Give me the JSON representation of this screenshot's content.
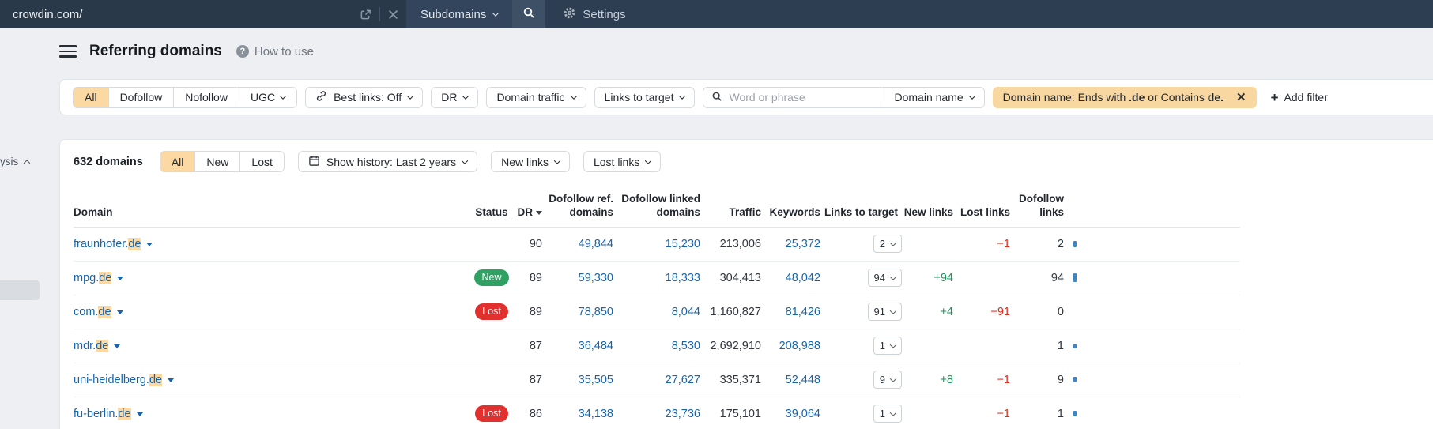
{
  "topbar": {
    "url_value": "crowdin.com/",
    "mode_label": "Subdomains",
    "settings_label": "Settings"
  },
  "sidebar": {
    "collapsed_label": "ysis"
  },
  "header": {
    "title": "Referring domains",
    "help_label": "How to use"
  },
  "filters": {
    "link_type_tabs": [
      {
        "label": "All"
      },
      {
        "label": "Dofollow"
      },
      {
        "label": "Nofollow"
      },
      {
        "label": "UGC"
      }
    ],
    "best_links_label": "Best links: Off",
    "dr_label": "DR",
    "domain_traffic_label": "Domain traffic",
    "links_to_target_label": "Links to target",
    "search_placeholder": "Word or phrase",
    "domain_name_label": "Domain name",
    "chip": {
      "part1": "Domain name: Ends with ",
      "bold1": ".de",
      "part2": " or Contains ",
      "bold2": "de."
    },
    "add_filter_label": "Add filter"
  },
  "toolbar": {
    "count_label": "632 domains",
    "tabs": [
      {
        "label": "All"
      },
      {
        "label": "New"
      },
      {
        "label": "Lost"
      }
    ],
    "history_label": "Show history: Last 2 years",
    "new_links_label": "New links",
    "lost_links_label": "Lost links"
  },
  "table": {
    "columns": [
      "Domain",
      "Status",
      "DR",
      "Dofollow ref. domains",
      "Dofollow linked domains",
      "Traffic",
      "Keywords",
      "Links to target",
      "New links",
      "Lost links",
      "Dofollow links"
    ],
    "rows": [
      {
        "domain_prefix": "fraunhofer.",
        "domain_highlight": "de",
        "status": "",
        "dr": "90",
        "dofollow_ref": "49,844",
        "dofollow_linked": "15,230",
        "traffic": "213,006",
        "keywords": "25,372",
        "links_to_target": "2",
        "new_links": "",
        "lost_links": "−1",
        "dofollow_links": "2",
        "bar": 8
      },
      {
        "domain_prefix": "mpg.",
        "domain_highlight": "de",
        "status": "New",
        "dr": "89",
        "dofollow_ref": "59,330",
        "dofollow_linked": "18,333",
        "traffic": "304,413",
        "keywords": "48,042",
        "links_to_target": "94",
        "new_links": "+94",
        "lost_links": "",
        "dofollow_links": "94",
        "bar": 11
      },
      {
        "domain_prefix": "com.",
        "domain_highlight": "de",
        "status": "Lost",
        "dr": "89",
        "dofollow_ref": "78,850",
        "dofollow_linked": "8,044",
        "traffic": "1,160,827",
        "keywords": "81,426",
        "links_to_target": "91",
        "new_links": "+4",
        "lost_links": "−91",
        "dofollow_links": "0",
        "bar": 0
      },
      {
        "domain_prefix": "mdr.",
        "domain_highlight": "de",
        "status": "",
        "dr": "87",
        "dofollow_ref": "36,484",
        "dofollow_linked": "8,530",
        "traffic": "2,692,910",
        "keywords": "208,988",
        "links_to_target": "1",
        "new_links": "",
        "lost_links": "",
        "dofollow_links": "1",
        "bar": 6
      },
      {
        "domain_prefix": "uni-heidelberg.",
        "domain_highlight": "de",
        "status": "",
        "dr": "87",
        "dofollow_ref": "35,505",
        "dofollow_linked": "27,627",
        "traffic": "335,371",
        "keywords": "52,448",
        "links_to_target": "9",
        "new_links": "+8",
        "lost_links": "−1",
        "dofollow_links": "9",
        "bar": 7
      },
      {
        "domain_prefix": "fu-berlin.",
        "domain_highlight": "de",
        "status": "Lost",
        "dr": "86",
        "dofollow_ref": "34,138",
        "dofollow_linked": "23,736",
        "traffic": "175,101",
        "keywords": "39,064",
        "links_to_target": "1",
        "new_links": "",
        "lost_links": "−1",
        "dofollow_links": "1",
        "bar": 7
      }
    ]
  },
  "colors": {
    "topbar_bg": "#2d3e53",
    "accent_peach": "#fcd9a2",
    "link_blue": "#1565ad",
    "badge_new_green": "#2fa163",
    "badge_lost_red": "#e0312e",
    "delta_green": "#18965c",
    "delta_red": "#e02b1d"
  }
}
